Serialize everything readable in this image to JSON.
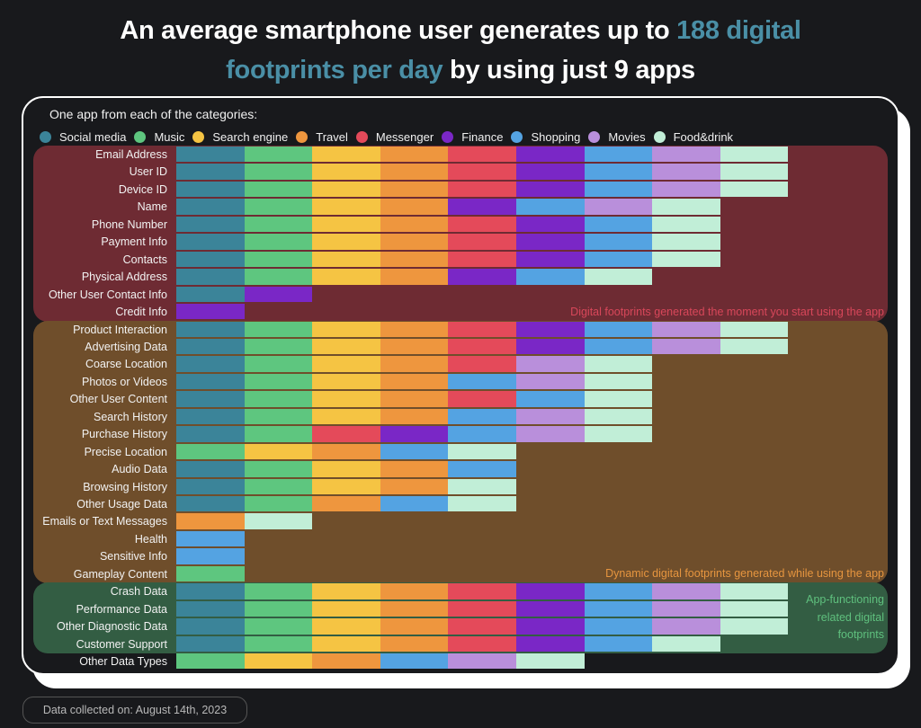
{
  "title": {
    "part1": "An average smartphone user generates up to ",
    "accent1": "188 digital",
    "accent2": "footprints per day",
    "part2": " by using just 9 apps"
  },
  "legend_title": "One app from each of the categories:",
  "footer": "Data collected on: August 14th, 2023",
  "chart_data": {
    "type": "table",
    "title": "An average smartphone user generates up to 188 digital footprints per day by using just 9 apps",
    "legend": [
      {
        "key": "S",
        "name": "Social media",
        "color": "#3b8499"
      },
      {
        "key": "Mu",
        "name": "Music",
        "color": "#5ec67f"
      },
      {
        "key": "Se",
        "name": "Search engine",
        "color": "#f5c443"
      },
      {
        "key": "T",
        "name": "Travel",
        "color": "#ee963e"
      },
      {
        "key": "Me",
        "name": "Messenger",
        "color": "#e44a5a"
      },
      {
        "key": "F",
        "name": "Finance",
        "color": "#7a27c6"
      },
      {
        "key": "Sh",
        "name": "Shopping",
        "color": "#54a3e2"
      },
      {
        "key": "Mo",
        "name": "Movies",
        "color": "#b98fdb"
      },
      {
        "key": "Fd",
        "name": "Food&drink",
        "color": "#c1eed7"
      }
    ],
    "sections": [
      {
        "name": "start",
        "note": "Digital footprints generated the moment you start using the app",
        "bg": "#6e2b33",
        "note_color": "#d8475a",
        "rows": [
          {
            "label": "Email Address",
            "apps": [
              "S",
              "Mu",
              "Se",
              "T",
              "Me",
              "F",
              "Sh",
              "Mo",
              "Fd"
            ]
          },
          {
            "label": "User ID",
            "apps": [
              "S",
              "Mu",
              "Se",
              "T",
              "Me",
              "F",
              "Sh",
              "Mo",
              "Fd"
            ]
          },
          {
            "label": "Device ID",
            "apps": [
              "S",
              "Mu",
              "Se",
              "T",
              "Me",
              "F",
              "Sh",
              "Mo",
              "Fd"
            ]
          },
          {
            "label": "Name",
            "apps": [
              "S",
              "Mu",
              "Se",
              "T",
              "F",
              "Sh",
              "Mo",
              "Fd"
            ]
          },
          {
            "label": "Phone Number",
            "apps": [
              "S",
              "Mu",
              "Se",
              "T",
              "Me",
              "F",
              "Sh",
              "Fd"
            ]
          },
          {
            "label": "Payment Info",
            "apps": [
              "S",
              "Mu",
              "Se",
              "T",
              "Me",
              "F",
              "Sh",
              "Fd"
            ]
          },
          {
            "label": "Contacts",
            "apps": [
              "S",
              "Mu",
              "Se",
              "T",
              "Me",
              "F",
              "Sh",
              "Fd"
            ]
          },
          {
            "label": "Physical Address",
            "apps": [
              "S",
              "Mu",
              "Se",
              "T",
              "F",
              "Sh",
              "Fd"
            ]
          },
          {
            "label": "Other User Contact Info",
            "apps": [
              "S",
              "F"
            ]
          },
          {
            "label": "Credit Info",
            "apps": [
              "F"
            ]
          }
        ]
      },
      {
        "name": "dynamic",
        "note": "Dynamic digital footprints generated while using the app",
        "bg": "#6f4e2b",
        "note_color": "#e6953f",
        "rows": [
          {
            "label": "Product Interaction",
            "apps": [
              "S",
              "Mu",
              "Se",
              "T",
              "Me",
              "F",
              "Sh",
              "Mo",
              "Fd"
            ]
          },
          {
            "label": "Advertising Data",
            "apps": [
              "S",
              "Mu",
              "Se",
              "T",
              "Me",
              "F",
              "Sh",
              "Mo",
              "Fd"
            ]
          },
          {
            "label": "Coarse Location",
            "apps": [
              "S",
              "Mu",
              "Se",
              "T",
              "Me",
              "Mo",
              "Fd"
            ]
          },
          {
            "label": "Photos or Videos",
            "apps": [
              "S",
              "Mu",
              "Se",
              "T",
              "Sh",
              "Mo",
              "Fd"
            ]
          },
          {
            "label": "Other User Content",
            "apps": [
              "S",
              "Mu",
              "Se",
              "T",
              "Me",
              "Sh",
              "Fd"
            ]
          },
          {
            "label": "Search History",
            "apps": [
              "S",
              "Mu",
              "Se",
              "T",
              "Sh",
              "Mo",
              "Fd"
            ]
          },
          {
            "label": "Purchase History",
            "apps": [
              "S",
              "Mu",
              "Me",
              "F",
              "Sh",
              "Mo",
              "Fd"
            ]
          },
          {
            "label": "Precise Location",
            "apps": [
              "Mu",
              "Se",
              "T",
              "Sh",
              "Fd"
            ]
          },
          {
            "label": "Audio Data",
            "apps": [
              "S",
              "Mu",
              "Se",
              "T",
              "Sh"
            ]
          },
          {
            "label": "Browsing History",
            "apps": [
              "S",
              "Mu",
              "Se",
              "T",
              "Fd"
            ]
          },
          {
            "label": "Other Usage Data",
            "apps": [
              "S",
              "Mu",
              "T",
              "Sh",
              "Fd"
            ]
          },
          {
            "label": "Emails or Text Messages",
            "apps": [
              "T",
              "Fd"
            ]
          },
          {
            "label": "Health",
            "apps": [
              "Sh"
            ]
          },
          {
            "label": "Sensitive Info",
            "apps": [
              "Sh"
            ]
          },
          {
            "label": "Gameplay Content",
            "apps": [
              "Mu"
            ]
          }
        ]
      },
      {
        "name": "functioning",
        "note": "App-functioning related digital footprints",
        "note_lines": [
          "App-functioning",
          "related digital",
          "footprints"
        ],
        "bg": "#335d43",
        "note_color": "#5fc07e",
        "rows": [
          {
            "label": "Crash Data",
            "apps": [
              "S",
              "Mu",
              "Se",
              "T",
              "Me",
              "F",
              "Sh",
              "Mo",
              "Fd"
            ]
          },
          {
            "label": "Performance Data",
            "apps": [
              "S",
              "Mu",
              "Se",
              "T",
              "Me",
              "F",
              "Sh",
              "Mo",
              "Fd"
            ]
          },
          {
            "label": "Other Diagnostic Data",
            "apps": [
              "S",
              "Mu",
              "Se",
              "T",
              "Me",
              "F",
              "Sh",
              "Mo",
              "Fd"
            ]
          },
          {
            "label": "Customer Support",
            "apps": [
              "S",
              "Mu",
              "Se",
              "T",
              "Me",
              "F",
              "Sh",
              "Fd"
            ]
          }
        ]
      },
      {
        "name": "other",
        "note": "",
        "bg": "",
        "note_color": "",
        "rows": [
          {
            "label": "Other Data Types",
            "apps": [
              "Mu",
              "Se",
              "T",
              "Sh",
              "Mo",
              "Fd"
            ]
          }
        ]
      }
    ]
  }
}
